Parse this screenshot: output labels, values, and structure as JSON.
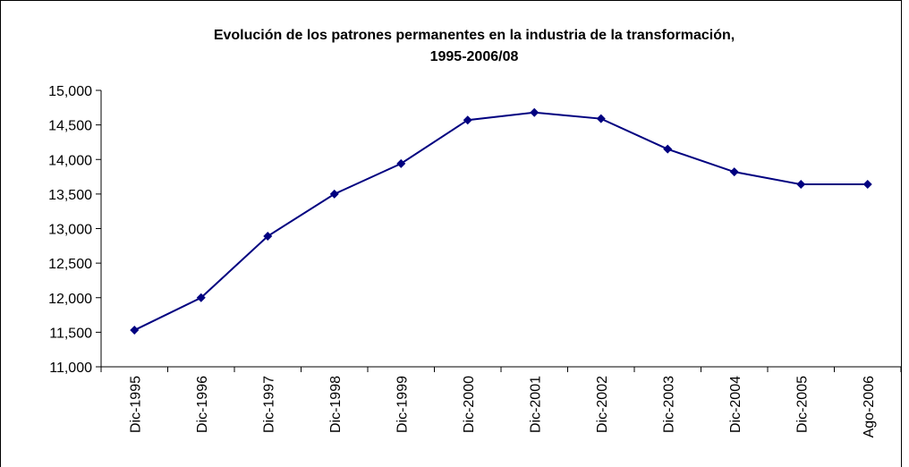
{
  "chart_data": {
    "type": "line",
    "title": "Evolución de los patrones permanentes en la industria de la transformación,",
    "subtitle": "1995-2006/08",
    "categories": [
      "Dic-1995",
      "Dic-1996",
      "Dic-1997",
      "Dic-1998",
      "Dic-1999",
      "Dic-2000",
      "Dic-2001",
      "Dic-2002",
      "Dic-2003",
      "Dic-2004",
      "Dic-2005",
      "Ago-2006"
    ],
    "series": [
      {
        "color": "#000080",
        "values": [
          11530,
          12000,
          12890,
          13500,
          13940,
          14570,
          14680,
          14590,
          14150,
          13820,
          13640,
          13640
        ]
      }
    ],
    "ylim": [
      11000,
      15000
    ],
    "yticks": [
      {
        "value": 11000,
        "label": "11,000"
      },
      {
        "value": 11500,
        "label": "11,500"
      },
      {
        "value": 12000,
        "label": "12,000"
      },
      {
        "value": 12500,
        "label": "12,500"
      },
      {
        "value": 13000,
        "label": "13,000"
      },
      {
        "value": 13500,
        "label": "13,500"
      },
      {
        "value": 14000,
        "label": "14,000"
      },
      {
        "value": 14500,
        "label": "14,500"
      },
      {
        "value": 15000,
        "label": "15,000"
      }
    ],
    "grid": false
  }
}
